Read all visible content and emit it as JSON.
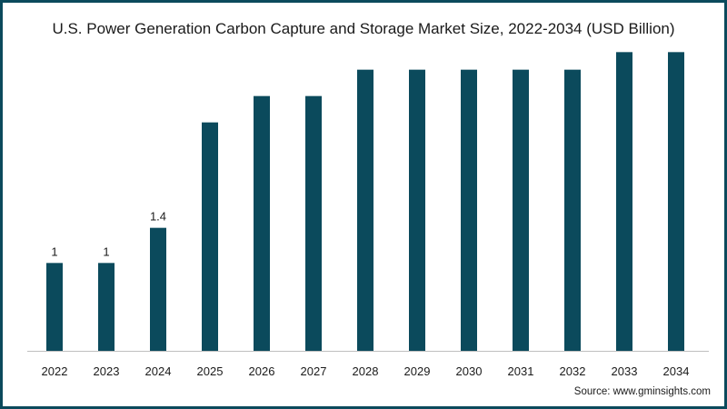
{
  "title": "U.S. Power Generation Carbon Capture and Storage Market Size, 2022-2034 (USD Billion)",
  "source": "Source: www.gminsights.com",
  "colors": {
    "bar": "#0b4a5c",
    "border": "#0b4a5c",
    "axis": "#bfbfbf",
    "text": "#1a1a1a"
  },
  "chart_data": {
    "type": "bar",
    "title": "U.S. Power Generation Carbon Capture and Storage Market Size, 2022-2034 (USD Billion)",
    "categories": [
      "2022",
      "2023",
      "2024",
      "2025",
      "2026",
      "2027",
      "2028",
      "2029",
      "2030",
      "2031",
      "2032",
      "2033",
      "2034"
    ],
    "values": [
      1.0,
      1.0,
      1.4,
      2.6,
      2.9,
      2.9,
      3.2,
      3.2,
      3.2,
      3.2,
      3.2,
      3.4,
      3.4
    ],
    "data_labels": [
      "1",
      "1",
      "1.4",
      "",
      "",
      "",
      "",
      "",
      "",
      "",
      "",
      "",
      ""
    ],
    "xlabel": "",
    "ylabel": "",
    "ylim": [
      0,
      3.6
    ],
    "grid": false,
    "legend": "none"
  }
}
